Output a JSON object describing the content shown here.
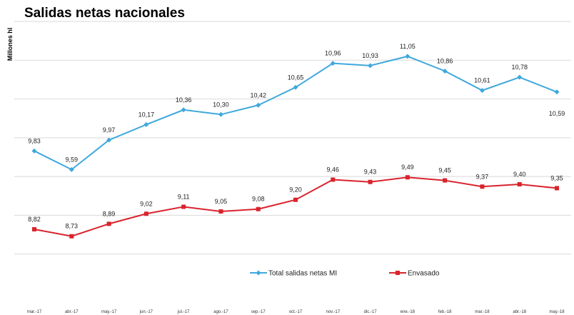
{
  "title": "Salidas netas nacionales",
  "chart_data": {
    "type": "line",
    "title": "Salidas netas nacionales",
    "ylabel": "Millones hl",
    "xlabel": "",
    "categories": [
      "mar.-17",
      "abr.-17",
      "may.-17",
      "jun.-17",
      "jul.-17",
      "ago.-17",
      "sep.-17",
      "oct.-17",
      "nov.-17",
      "dic.-17",
      "ene.-18",
      "feb.-18",
      "mar.-18",
      "abr.-18",
      "may.-18"
    ],
    "series": [
      {
        "name": "Total salidas netas MI",
        "color": "#3fa8dd",
        "marker": "diamond",
        "values": [
          9.83,
          9.59,
          9.97,
          10.17,
          10.36,
          10.3,
          10.42,
          10.65,
          10.96,
          10.93,
          11.05,
          10.86,
          10.61,
          10.78,
          10.59
        ],
        "labels": [
          "9,83",
          "9,59",
          "9,97",
          "10,17",
          "10,36",
          "10,30",
          "10,42",
          "10,65",
          "10,96",
          "10,93",
          "11,05",
          "10,86",
          "10,61",
          "10,78",
          "10,59"
        ]
      },
      {
        "name": "Envasado",
        "color": "#d9232d",
        "marker": "square",
        "values": [
          8.82,
          8.73,
          8.89,
          9.02,
          9.11,
          9.05,
          9.08,
          9.2,
          9.46,
          9.43,
          9.49,
          9.45,
          9.37,
          9.4,
          9.35
        ],
        "labels": [
          "8,82",
          "8,73",
          "8,89",
          "9,02",
          "9,11",
          "9,05",
          "9,08",
          "9,20",
          "9,46",
          "9,43",
          "9,49",
          "9,45",
          "9,37",
          "9,40",
          "9,35"
        ]
      }
    ],
    "ylim": [
      8.0,
      11.5
    ],
    "grid": true,
    "legend": "bottom-center"
  }
}
